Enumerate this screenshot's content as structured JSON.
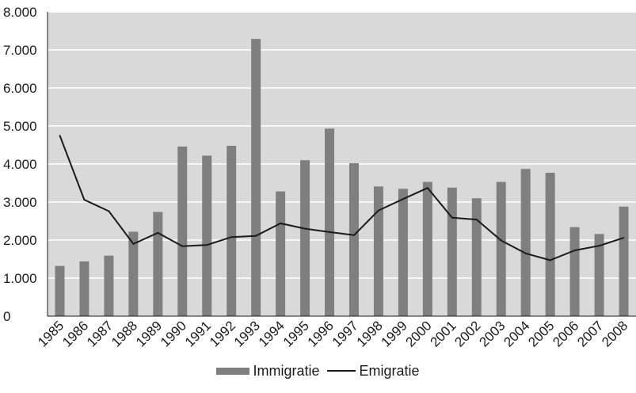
{
  "chart_data": {
    "type": "bar",
    "categories": [
      "1985",
      "1986",
      "1987",
      "1988",
      "1989",
      "1990",
      "1991",
      "1992",
      "1993",
      "1994",
      "1995",
      "1996",
      "1997",
      "1998",
      "1999",
      "2000",
      "2001",
      "2002",
      "2003",
      "2004",
      "2005",
      "2006",
      "2007",
      "2008"
    ],
    "series": [
      {
        "name": "Immigratie",
        "type": "bar",
        "color": "#7f7f7f",
        "values": [
          1320,
          1440,
          1590,
          2220,
          2740,
          4460,
          4220,
          4480,
          7290,
          3280,
          4100,
          4930,
          4020,
          3410,
          3350,
          3530,
          3380,
          3100,
          3530,
          3870,
          3770,
          2340,
          2160,
          2880
        ]
      },
      {
        "name": "Emigratie",
        "type": "line",
        "color": "#1a1a1a",
        "values": [
          4750,
          3060,
          2760,
          1900,
          2190,
          1840,
          1870,
          2080,
          2110,
          2440,
          2300,
          2210,
          2130,
          2780,
          3080,
          3370,
          2590,
          2540,
          1990,
          1650,
          1470,
          1730,
          1850,
          2060
        ]
      }
    ],
    "y_ticks": [
      "0",
      "1.000",
      "2.000",
      "3.000",
      "4.000",
      "5.000",
      "6.000",
      "7.000",
      "8.000"
    ],
    "ylim": [
      0,
      8000
    ],
    "background_color": "#d9d9d9",
    "grid": true,
    "legend_position": "bottom"
  }
}
